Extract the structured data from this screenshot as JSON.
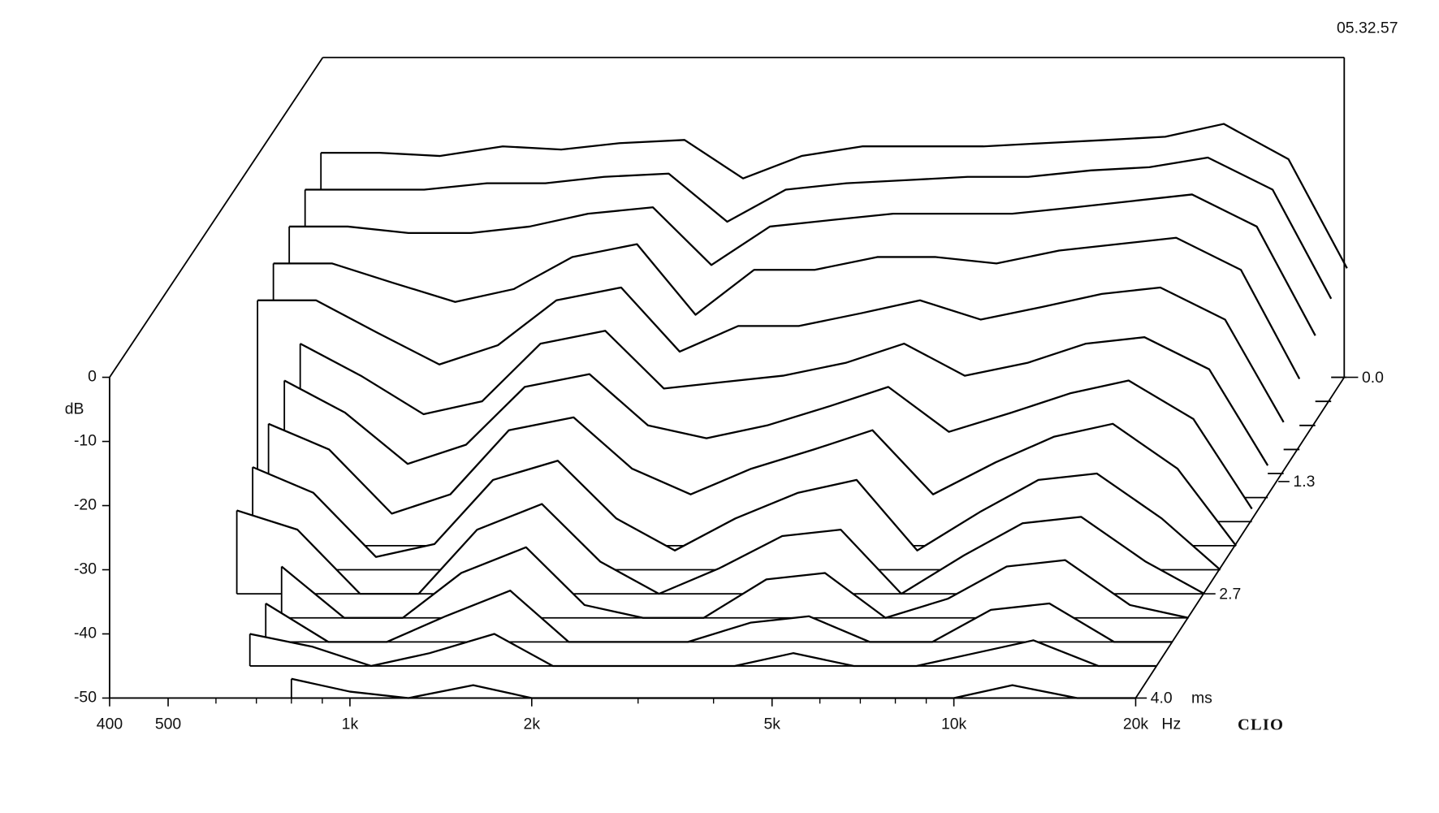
{
  "chart_data": {
    "type": "waterfall",
    "timestamp": "05.32.57",
    "brand": "CLIO",
    "y_label": "dB",
    "x_label": "Hz",
    "z_label": "ms",
    "log_x": true,
    "color": "#000000",
    "xlim": [
      400,
      20000
    ],
    "xticks": [
      400,
      500,
      {
        "value": 1000,
        "label": "1k"
      },
      {
        "value": 2000,
        "label": "2k"
      },
      {
        "value": 5000,
        "label": "5k"
      },
      {
        "value": 10000,
        "label": "10k"
      },
      {
        "value": 20000,
        "label": "20k"
      }
    ],
    "xticks_minor": [
      600,
      700,
      800,
      900,
      3000,
      4000,
      6000,
      7000,
      8000,
      9000
    ],
    "ylim": [
      -50,
      0
    ],
    "yticks": [
      0,
      -10,
      -20,
      -30,
      -40,
      -50
    ],
    "zlim": [
      0,
      4
    ],
    "zticks": [
      {
        "value": 0,
        "label": "0.0"
      },
      1.3,
      2.7,
      {
        "value": 4,
        "label": "4.0"
      }
    ],
    "x": [
      400,
      500,
      630,
      800,
      1000,
      1250,
      1600,
      2000,
      2500,
      3150,
      4000,
      5000,
      6300,
      8000,
      10000,
      12500,
      16000,
      20000
    ],
    "series": [
      {
        "time": 0.0,
        "values": [
          -15,
          -15,
          -15.5,
          -14,
          -14.5,
          -13.5,
          -13,
          -19,
          -15.5,
          -14,
          -14,
          -14,
          -13.5,
          -13,
          -12.5,
          -10.5,
          -16,
          -33
        ]
      },
      {
        "time": 0.3,
        "values": [
          -17,
          -17,
          -17,
          -16,
          -16,
          -15,
          -14.5,
          -22,
          -17,
          -16,
          -15.5,
          -15,
          -15,
          -14,
          -13.5,
          -12,
          -17,
          -34
        ]
      },
      {
        "time": 0.6,
        "values": [
          -19,
          -19,
          -20,
          -20,
          -19,
          -17,
          -16,
          -25,
          -19,
          -18,
          -17,
          -17,
          -17,
          -16,
          -15,
          -14,
          -19,
          -36
        ]
      },
      {
        "time": 0.9,
        "values": [
          -21,
          -21,
          -24,
          -27,
          -25,
          -20,
          -18,
          -29,
          -22,
          -22,
          -20,
          -20,
          -21,
          -19,
          -18,
          -17,
          -22,
          -39
        ]
      },
      {
        "time": 1.2,
        "values": [
          -23,
          -23,
          -28,
          -33,
          -30,
          -23,
          -21,
          -31,
          -27,
          -27,
          -25,
          -23,
          -26,
          -24,
          -22,
          -21,
          -26,
          -42
        ]
      },
      {
        "time": 1.5,
        "values": [
          null,
          -26,
          -31,
          -37,
          -35,
          -26,
          -24,
          -33,
          -32,
          -31,
          -29,
          -26,
          -31,
          -29,
          -26,
          -25,
          -30,
          -45
        ]
      },
      {
        "time": 1.8,
        "values": [
          null,
          -28,
          -33,
          -41,
          -38,
          -29,
          -27,
          -35,
          -37,
          -35,
          -32,
          -29,
          -36,
          -33,
          -30,
          -28,
          -34,
          -48
        ]
      },
      {
        "time": 2.1,
        "values": [
          null,
          -31,
          -35,
          -45,
          -42,
          -32,
          -30,
          -38,
          -42,
          -38,
          -35,
          -32,
          -42,
          -37,
          -33,
          -31,
          -38,
          -50
        ]
      },
      {
        "time": 2.4,
        "values": [
          null,
          -34,
          -38,
          -48,
          -46,
          -36,
          -33,
          -42,
          -47,
          -42,
          -38,
          -36,
          -47,
          -41,
          -36,
          -35,
          -42,
          -50
        ]
      },
      {
        "time": 2.7,
        "values": [
          null,
          -37,
          -40,
          -50,
          -50,
          -40,
          -36,
          -45,
          -50,
          -46,
          -41,
          -40,
          -50,
          -44,
          -39,
          -38,
          -45,
          -50
        ]
      },
      {
        "time": 3.0,
        "values": [
          null,
          null,
          -42,
          -50,
          -50,
          -43,
          -39,
          -48,
          -50,
          -50,
          -44,
          -43,
          -50,
          -47,
          -42,
          -41,
          -48,
          -50
        ]
      },
      {
        "time": 3.3,
        "values": [
          null,
          null,
          -44,
          -50,
          -50,
          -46,
          -42,
          -50,
          -50,
          -50,
          -47,
          -46,
          -50,
          -50,
          -45,
          -44,
          -50,
          -50
        ]
      },
      {
        "time": 3.6,
        "values": [
          null,
          null,
          -45,
          -47,
          -50,
          -48,
          -45,
          -50,
          -50,
          -50,
          -50,
          -48,
          -50,
          -50,
          -48,
          -46,
          -50,
          -50
        ]
      },
      {
        "time": 4.0,
        "values": [
          null,
          null,
          null,
          -47,
          -49,
          -50,
          -48,
          -50,
          -50,
          -50,
          -50,
          -50,
          -50,
          -50,
          -50,
          -48,
          -50,
          -50
        ]
      }
    ]
  }
}
